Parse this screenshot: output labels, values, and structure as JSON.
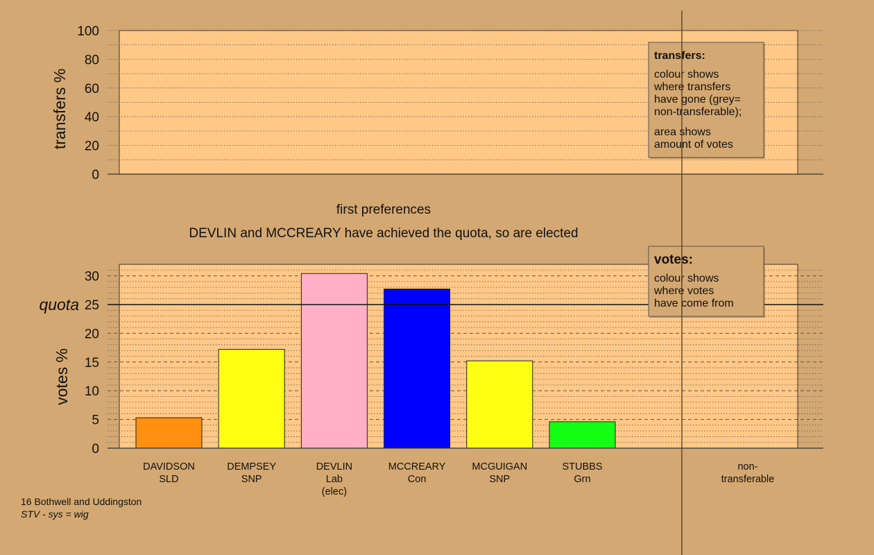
{
  "colors": {
    "background": "#d4a872",
    "plot_fill": "#ffc887",
    "legend_fill": "#d4a872"
  },
  "chart_data": [
    {
      "type": "area",
      "title": "",
      "ylabel": "transfers %",
      "ylim": [
        0,
        100
      ],
      "yticks": [
        "0",
        "20",
        "40",
        "60",
        "80",
        "100"
      ],
      "grid": "dotted",
      "series": [],
      "legend": {
        "title": "transfers:",
        "lines_1": [
          "colour shows",
          "where transfers",
          "have gone (grey=",
          "non-transferable);"
        ],
        "lines_2": [
          "area shows",
          "amount of votes"
        ]
      }
    },
    {
      "type": "bar",
      "title": "first preferences",
      "subtitle": "DEVLIN and MCCREARY have achieved the quota, so are elected",
      "ylabel": "votes %",
      "ylim": [
        0,
        32
      ],
      "yticks": [
        "0",
        "5",
        "10",
        "15",
        "20",
        "25",
        "30"
      ],
      "quota": {
        "label": "quota",
        "value": 25
      },
      "categories": [
        {
          "name": "DAVIDSON",
          "party": "SLD",
          "note": ""
        },
        {
          "name": "DEMPSEY",
          "party": "SNP",
          "note": ""
        },
        {
          "name": "DEVLIN",
          "party": "Lab",
          "note": "(elec)"
        },
        {
          "name": "MCCREARY",
          "party": "Con",
          "note": ""
        },
        {
          "name": "MCGUIGAN",
          "party": "SNP",
          "note": ""
        },
        {
          "name": "STUBBS",
          "party": "Grn",
          "note": ""
        }
      ],
      "values": [
        5.3,
        17.2,
        30.4,
        27.7,
        15.2,
        4.6
      ],
      "bar_colors": [
        "#ff9010",
        "#ffff14",
        "#ffb0c8",
        "#0000ff",
        "#ffff14",
        "#14ff14"
      ],
      "extra_category": {
        "line1": "non-",
        "line2": "transferable"
      },
      "legend": {
        "title": "votes:",
        "lines": [
          "colour shows",
          "where votes",
          "have come from"
        ]
      }
    }
  ],
  "footer": {
    "constituency": "16 Bothwell and Uddingston",
    "system": "STV - sys = wig"
  }
}
